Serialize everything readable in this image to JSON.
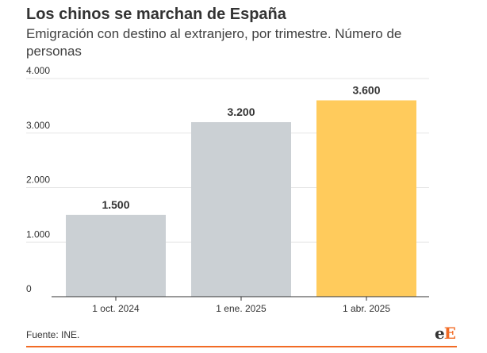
{
  "title": "Los chinos se marchan de España",
  "subtitle": "Emigración con destino al extranjero, por trimestre. Número de personas",
  "source": "Fuente: INE.",
  "logo": {
    "part1": "e",
    "part2": "E"
  },
  "colors": {
    "bar_default": "#cbd0d4",
    "bar_highlight": "#ffcb5c",
    "grid": "#e5e5e5",
    "axis": "#333333",
    "accent": "#f26b25"
  },
  "chart_data": {
    "type": "bar",
    "title": "Los chinos se marchan de España",
    "subtitle": "Emigración con destino al extranjero, por trimestre. Número de personas",
    "categories": [
      "1 oct. 2024",
      "1 ene. 2025",
      "1 abr. 2025"
    ],
    "values": [
      1500,
      3200,
      3600
    ],
    "value_labels": [
      "1.500",
      "3.200",
      "3.600"
    ],
    "highlight": [
      false,
      false,
      true
    ],
    "yticks": [
      0,
      1000,
      2000,
      3000,
      4000
    ],
    "ytick_labels": [
      "0",
      "1.000",
      "2.000",
      "3.000",
      "4.000"
    ],
    "ylim": [
      0,
      4000
    ],
    "xlabel": "",
    "ylabel": "",
    "grid": true,
    "legend": "none"
  }
}
